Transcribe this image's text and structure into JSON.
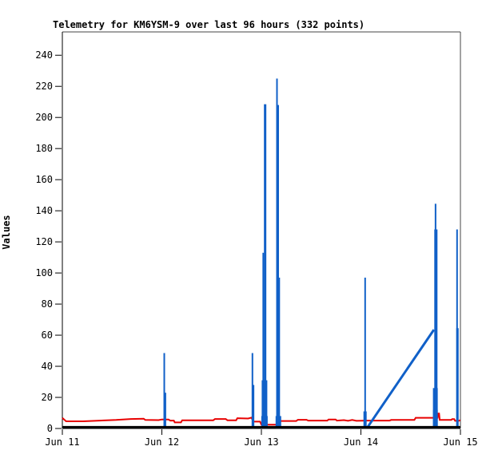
{
  "chart_data": {
    "type": "line",
    "title": "Telemetry for KM6YSM-9 over last 96 hours (332 points)",
    "ylabel": "Values",
    "xlabel": "",
    "x_unit": "hours since Jun 11 00:00",
    "xlim": [
      0,
      96
    ],
    "ylim": [
      0,
      255
    ],
    "grid": false,
    "legend": "none",
    "y_ticks": [
      0,
      20,
      40,
      60,
      80,
      100,
      120,
      140,
      160,
      180,
      200,
      220,
      240
    ],
    "x_ticks": [
      {
        "h": 0,
        "label": "Jun 11"
      },
      {
        "h": 24,
        "label": "Jun 12"
      },
      {
        "h": 48,
        "label": "Jun 13"
      },
      {
        "h": 72,
        "label": "Jun 14"
      },
      {
        "h": 96,
        "label": "Jun 15"
      }
    ],
    "colors": {
      "blue_series": "#1060c8",
      "red_series": "#e80000",
      "baseline_series": "#000000",
      "axis": "#000000",
      "border": "#444444",
      "background": "#ffffff"
    },
    "series": [
      {
        "name": "red-telemetry-channel",
        "type": "polyline",
        "color": "#e80000",
        "width": 2,
        "points": [
          [
            0,
            6.8
          ],
          [
            0.9,
            4.6
          ],
          [
            5,
            4.6
          ],
          [
            9,
            5.1
          ],
          [
            13,
            5.5
          ],
          [
            16.5,
            6.1
          ],
          [
            19.6,
            6.3
          ],
          [
            20.0,
            5.5
          ],
          [
            23.2,
            5.4
          ],
          [
            24.0,
            5.8
          ],
          [
            25.6,
            5.8
          ],
          [
            26.0,
            5.1
          ],
          [
            26.9,
            5.1
          ],
          [
            27.1,
            3.9
          ],
          [
            28.6,
            3.9
          ],
          [
            28.9,
            5.3
          ],
          [
            36.4,
            5.3
          ],
          [
            36.8,
            6.1
          ],
          [
            39.4,
            6.1
          ],
          [
            39.8,
            5.3
          ],
          [
            41.9,
            5.3
          ],
          [
            42.2,
            6.6
          ],
          [
            44.8,
            6.4
          ],
          [
            45.6,
            7.0
          ],
          [
            46.1,
            4.4
          ],
          [
            47.7,
            4.4
          ],
          [
            48.0,
            2.4
          ],
          [
            51.6,
            2.4
          ],
          [
            52.1,
            4.3
          ],
          [
            52.6,
            4.8
          ],
          [
            56.4,
            4.8
          ],
          [
            56.8,
            5.6
          ],
          [
            58.9,
            5.6
          ],
          [
            59.3,
            5.1
          ],
          [
            63.9,
            5.1
          ],
          [
            64.2,
            5.8
          ],
          [
            65.9,
            5.8
          ],
          [
            66.2,
            5.1
          ],
          [
            67.9,
            5.4
          ],
          [
            68.9,
            4.9
          ],
          [
            69.9,
            5.5
          ],
          [
            70.9,
            4.9
          ],
          [
            73.4,
            5.1
          ],
          [
            78.9,
            5.1
          ],
          [
            79.3,
            5.5
          ],
          [
            84.9,
            5.5
          ],
          [
            85.2,
            6.9
          ],
          [
            90.5,
            6.9
          ],
          [
            90.6,
            9.6
          ],
          [
            90.85,
            9.6
          ],
          [
            91.0,
            5.5
          ],
          [
            93.8,
            5.5
          ],
          [
            94.0,
            6.0
          ],
          [
            94.5,
            6.0
          ],
          [
            94.7,
            4.9
          ],
          [
            95.6,
            4.9
          ],
          [
            95.8,
            5.2
          ],
          [
            96,
            5.2
          ]
        ]
      },
      {
        "name": "blue-telemetry-spikes",
        "type": "spikes",
        "color": "#1060c8",
        "points": [
          [
            24.58,
            48.5,
            2
          ],
          [
            24.75,
            23,
            3
          ],
          [
            45.84,
            48.5,
            2
          ],
          [
            46.0,
            28,
            3
          ],
          [
            48.45,
            113,
            2
          ],
          [
            48.9,
            208.5,
            3
          ],
          [
            48.75,
            31,
            7
          ],
          [
            48.75,
            8,
            8
          ],
          [
            51.76,
            225,
            2
          ],
          [
            52.05,
            208,
            2
          ],
          [
            52.3,
            97,
            2
          ],
          [
            52.1,
            8,
            7
          ],
          [
            73.02,
            97,
            2
          ],
          [
            73.0,
            11,
            4
          ],
          [
            90.0,
            144.5,
            2
          ],
          [
            90.08,
            128,
            4
          ],
          [
            89.95,
            26,
            6
          ],
          [
            89.95,
            12,
            6
          ],
          [
            95.19,
            128,
            2
          ],
          [
            95.28,
            64.5,
            3
          ]
        ]
      },
      {
        "name": "blue-interpolation-ramp",
        "type": "segment",
        "color": "#1060c8",
        "width": 3,
        "from": [
          73.6,
          0.8
        ],
        "to": [
          89.6,
          63.5
        ]
      },
      {
        "name": "black-baseline-channel",
        "type": "polyline",
        "color": "#000000",
        "width": 3,
        "points": [
          [
            0,
            0.8
          ],
          [
            96,
            0.8
          ]
        ]
      }
    ]
  }
}
